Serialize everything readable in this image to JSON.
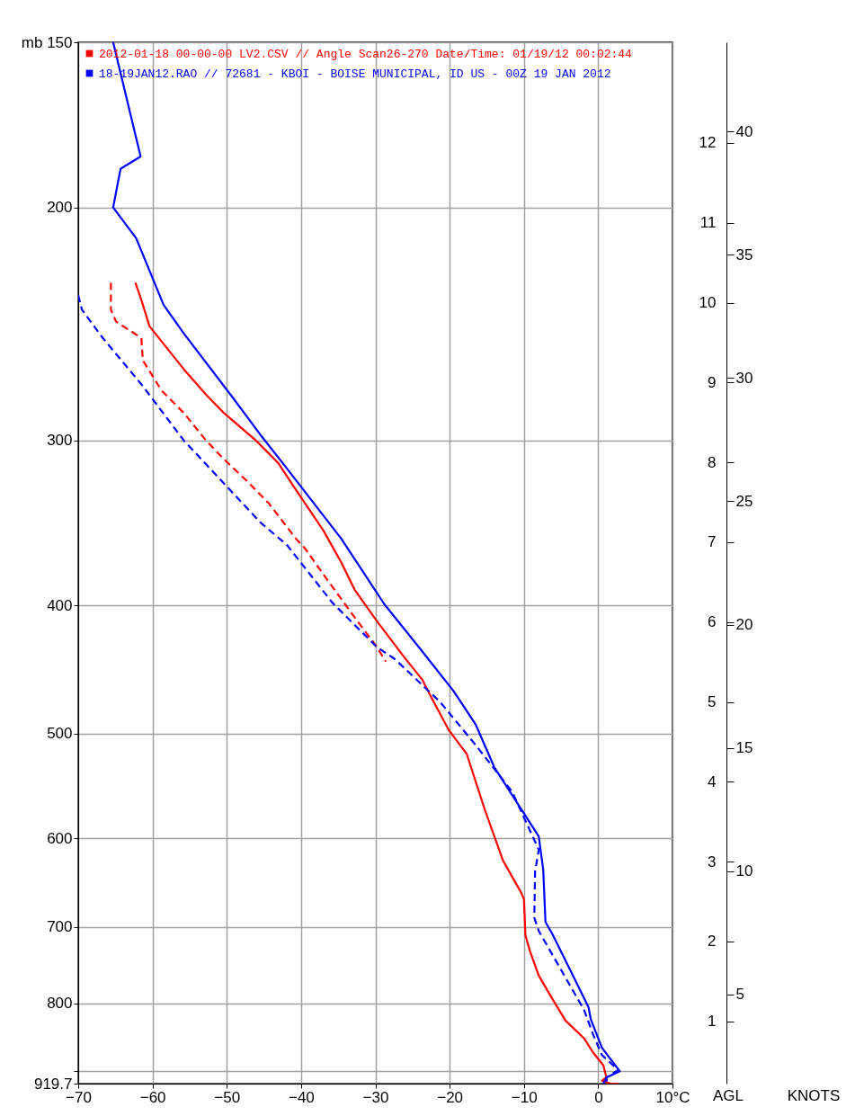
{
  "chart_data": {
    "type": "line",
    "legend": "top left",
    "grid": true,
    "log": "y",
    "line_style": "solid",
    "xlim": [
      -70,
      10
    ],
    "xticks": [
      -70,
      -60,
      -50,
      -40,
      -30,
      -20,
      -10,
      0,
      {
        "value": 10,
        "label": "10°C"
      }
    ],
    "ylim": [
      919.7,
      150
    ],
    "yticks": [
      {
        "value": 150,
        "label": "mb 150"
      },
      200,
      300,
      400,
      500,
      600,
      700,
      800,
      {
        "value": 900,
        "label": null
      },
      919.7
    ],
    "y2lim": [
      0.22,
      13.26
    ],
    "y2ticks": [
      1,
      2,
      3,
      4,
      5,
      6,
      7,
      8,
      9,
      10,
      11,
      12
    ],
    "y3lim": [
      1.37,
      43.63
    ],
    "y3ticks": [
      5,
      10,
      15,
      20,
      25,
      30,
      35,
      40
    ],
    "annotations": [
      "AGL",
      "KNOTS"
    ],
    "series": [
      {
        "name": "2012-01-18 00-00-00 LV2.CSV // Angle Scan26-270  Date/Time: 01/19/12 00:02:44",
        "color": "#ff0000",
        "x": [
          -62.3,
          -61.5,
          -60.4,
          -55.8,
          -52.8,
          -50.4,
          -46.1,
          -43.1,
          -40.7,
          -37.0,
          -34.6,
          -32.8,
          -29.8,
          -26.2,
          -23.7,
          -22.5,
          -20.1,
          -17.7,
          -15.3,
          -12.8,
          -10.4,
          -10.0,
          -9.8,
          -9.2,
          -8.0,
          -6.2,
          -4.4,
          -1.9,
          -0.7,
          0.7,
          1.1,
          0.5,
          1.7,
          2.7
        ],
        "values": [
          228,
          235,
          246,
          265,
          277,
          286,
          300,
          312,
          327,
          351,
          371,
          389,
          411,
          437,
          455,
          469,
          497,
          518,
          570,
          624,
          659,
          667,
          710,
          730,
          762,
          793,
          824,
          850,
          871,
          891,
          910,
          915,
          919.7,
          919.7
        ]
      },
      {
        "color": "#ff0000",
        "line_style": "dashed",
        "x": [
          -65.6,
          -65.6,
          -64.9,
          -61.5,
          -61.3,
          -58.8,
          -55.8,
          -52.8,
          -50.4,
          -47.3,
          -44.3,
          -40.7,
          -39.5,
          -36.4,
          -33.4,
          -29.8,
          -28.6
        ],
        "values": [
          228,
          239,
          244,
          251,
          261,
          275,
          286,
          300,
          310,
          322,
          335,
          356,
          362,
          383,
          404,
          430,
          441
        ]
      },
      {
        "name": "18-19JAN12.RAO // 72681 - KBOI - BOISE MUNICIPAL, ID US - 00Z  19 JAN 2012",
        "color": "#0000ff",
        "x": [
          -65.3,
          -61.6,
          -64.3,
          -65.3,
          -62.2,
          -58.5,
          -55.8,
          -49.3,
          -45.5,
          -42.5,
          -34.6,
          -28.8,
          -24.3,
          -19.5,
          -16.5,
          -14.0,
          -8.0,
          -7.4,
          -7.1,
          -6.1,
          -1.3,
          -1.0,
          0.5,
          2.9,
          1.1,
          0.7
        ],
        "values": [
          150,
          183,
          187,
          200,
          211,
          237,
          249,
          278,
          297,
          312,
          356,
          399,
          429,
          464,
          492,
          530,
          598,
          634,
          694,
          710,
          805,
          822,
          864,
          900,
          910,
          919.7
        ]
      },
      {
        "color": "#0000ff",
        "line_style": "dashed",
        "x": [
          -70.0,
          -69.5,
          -66.7,
          -61.3,
          -55.8,
          -45.5,
          -41.9,
          -35.8,
          -29.8,
          -27.4,
          -21.3,
          -16.5,
          -11.6,
          -8.0,
          -8.5,
          -8.6,
          -8.0,
          -1.9,
          -0.7,
          0.5,
          2.7,
          1.1,
          1.2
        ],
        "values": [
          233,
          239,
          251,
          273,
          300,
          346,
          360,
          398,
          430,
          439,
          473,
          510,
          553,
          612,
          636,
          689,
          705,
          809,
          844,
          875,
          898,
          910,
          919.7
        ]
      }
    ]
  }
}
